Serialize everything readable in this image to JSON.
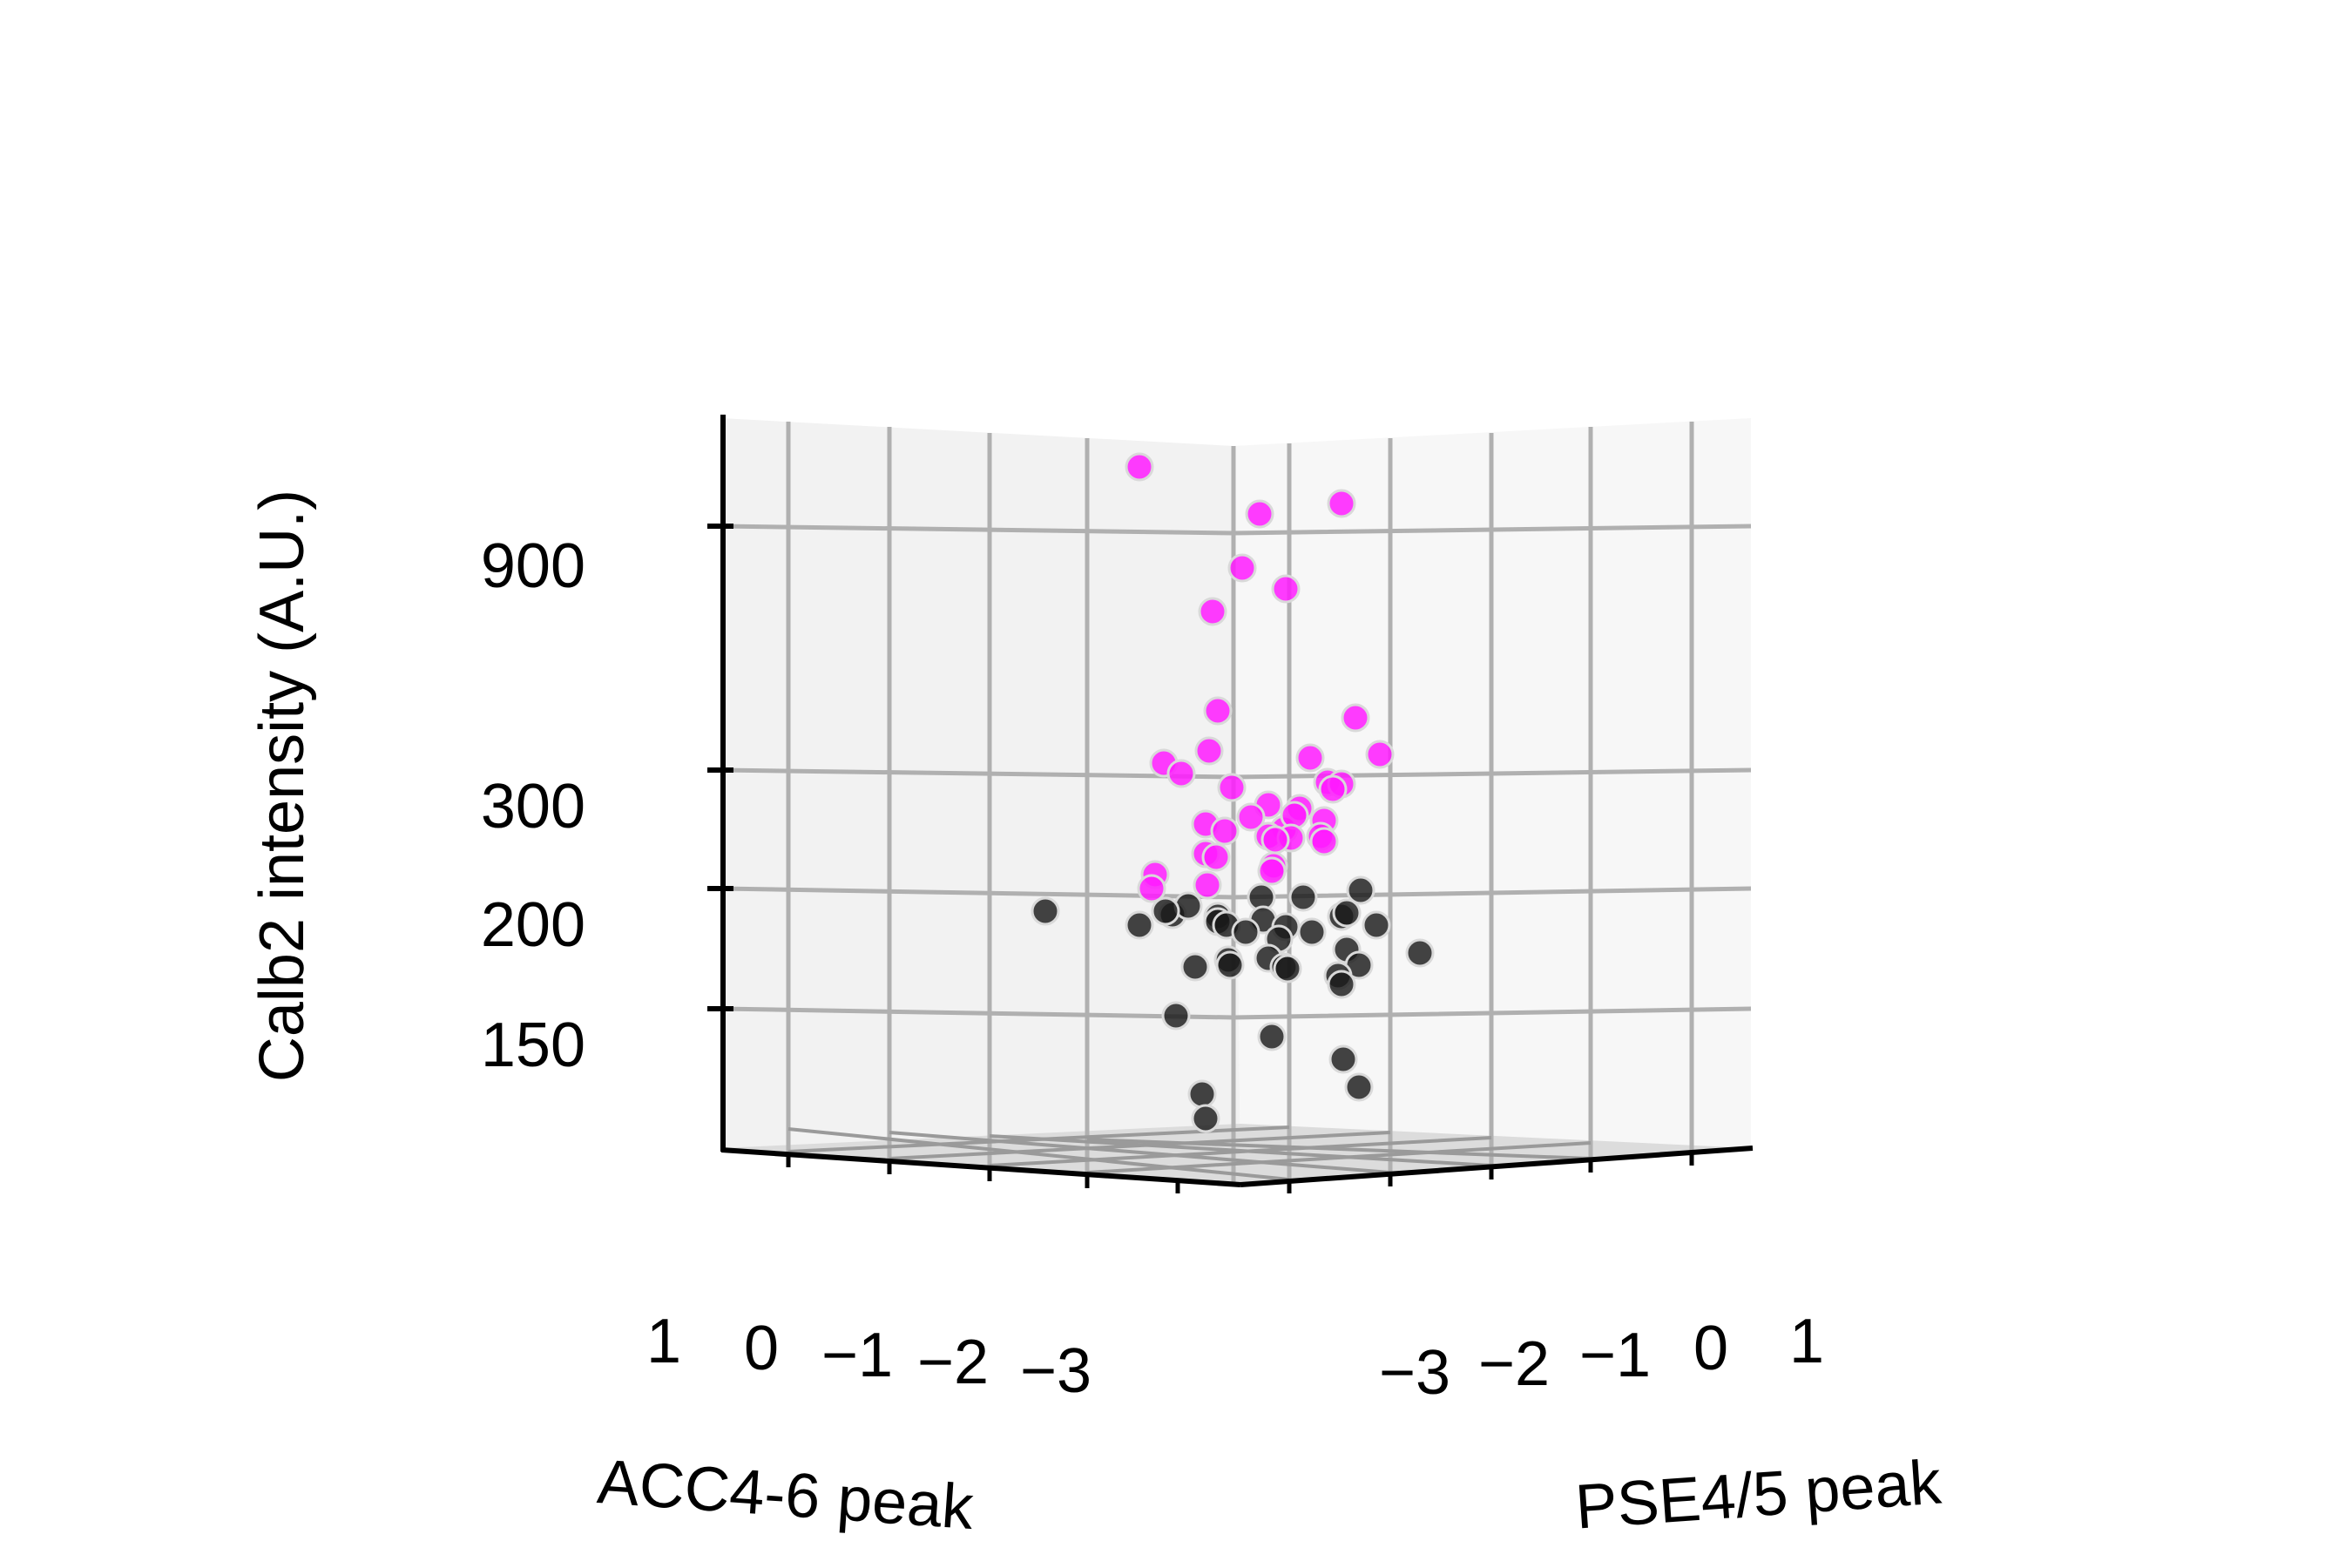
{
  "chart_data": {
    "type": "scatter",
    "projection": "3d",
    "title": "",
    "axes": {
      "x": {
        "label": "ACC4-6 peak",
        "ticks": [
          "1",
          "0",
          "−1",
          "−2",
          "−3"
        ]
      },
      "y": {
        "label": "PSE4/5 peak",
        "ticks": [
          "−3",
          "−2",
          "−1",
          "0",
          "1"
        ]
      },
      "z": {
        "label": "Calb2 intensity (A.U.)",
        "ticks": [
          "900",
          "300",
          "200",
          "150"
        ],
        "scale": "log"
      }
    },
    "grid": true,
    "legend": "none",
    "colors": {
      "high": "#ff1aff",
      "low": "#1a1a1a",
      "pane_left": "#f2f2f2",
      "pane_right": "#f7f7f7",
      "grid": "#b0b0b0"
    },
    "series": [
      {
        "color": "high",
        "points": [
          [
            1308,
            536
          ],
          [
            1446,
            590
          ],
          [
            1540,
            578
          ],
          [
            1426,
            652
          ],
          [
            1476,
            676
          ],
          [
            1392,
            702
          ],
          [
            1398,
            816
          ],
          [
            1556,
            824
          ],
          [
            1336,
            876
          ],
          [
            1388,
            862
          ],
          [
            1504,
            870
          ],
          [
            1584,
            866
          ],
          [
            1356,
            888
          ],
          [
            1414,
            904
          ],
          [
            1524,
            898
          ],
          [
            1540,
            900
          ],
          [
            1456,
            924
          ],
          [
            1492,
            928
          ],
          [
            1530,
            906
          ],
          [
            1384,
            946
          ],
          [
            1436,
            938
          ],
          [
            1474,
            952
          ],
          [
            1486,
            936
          ],
          [
            1520,
            942
          ],
          [
            1406,
            954
          ],
          [
            1456,
            960
          ],
          [
            1482,
            962
          ],
          [
            1516,
            960
          ],
          [
            1384,
            980
          ],
          [
            1464,
            964
          ],
          [
            1520,
            966
          ],
          [
            1396,
            984
          ],
          [
            1462,
            994
          ],
          [
            1326,
            1004
          ],
          [
            1386,
            1016
          ],
          [
            1460,
            1000
          ],
          [
            1322,
            1020
          ]
        ]
      },
      {
        "color": "low",
        "points": [
          [
            1200,
            1046
          ],
          [
            1308,
            1062
          ],
          [
            1346,
            1050
          ],
          [
            1364,
            1040
          ],
          [
            1338,
            1046
          ],
          [
            1398,
            1052
          ],
          [
            1448,
            1030
          ],
          [
            1496,
            1030
          ],
          [
            1562,
            1022
          ],
          [
            1450,
            1056
          ],
          [
            1476,
            1064
          ],
          [
            1540,
            1052
          ],
          [
            1580,
            1062
          ],
          [
            1546,
            1048
          ],
          [
            1398,
            1058
          ],
          [
            1408,
            1062
          ],
          [
            1630,
            1094
          ],
          [
            1430,
            1070
          ],
          [
            1468,
            1078
          ],
          [
            1506,
            1070
          ],
          [
            1372,
            1110
          ],
          [
            1410,
            1102
          ],
          [
            1456,
            1100
          ],
          [
            1474,
            1110
          ],
          [
            1546,
            1090
          ],
          [
            1560,
            1108
          ],
          [
            1536,
            1120
          ],
          [
            1478,
            1112
          ],
          [
            1412,
            1108
          ],
          [
            1540,
            1130
          ],
          [
            1350,
            1166
          ],
          [
            1460,
            1190
          ],
          [
            1542,
            1216
          ],
          [
            1380,
            1256
          ],
          [
            1560,
            1248
          ],
          [
            1384,
            1284
          ]
        ]
      }
    ]
  }
}
